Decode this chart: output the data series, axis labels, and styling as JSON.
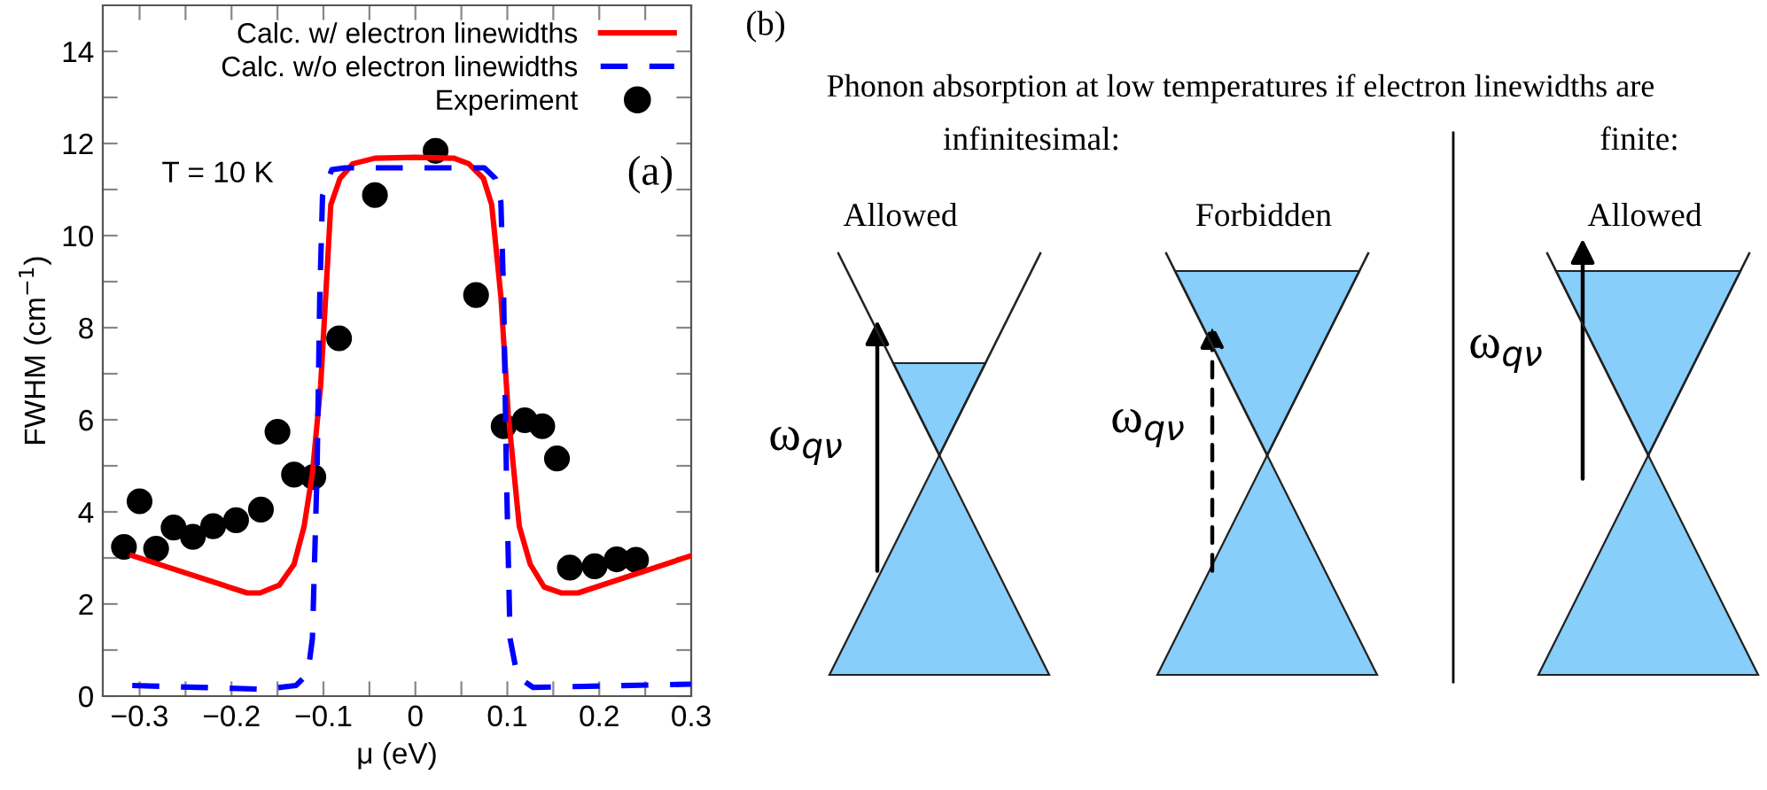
{
  "chart_data": [
    {
      "type": "line",
      "xlabel": "μ (eV)",
      "ylabel": "FWHM (cm$^{−1}$)",
      "xlim": [
        -0.34,
        0.3
      ],
      "ylim": [
        0,
        15
      ],
      "xticks": [
        {
          "value": -0.3,
          "label": "−0.3"
        },
        {
          "value": -0.25,
          "label": null
        },
        {
          "value": -0.2,
          "label": "−0.2"
        },
        {
          "value": -0.15,
          "label": null
        },
        {
          "value": -0.1,
          "label": "−0.1"
        },
        {
          "value": -0.05,
          "label": null
        },
        0,
        {
          "value": 0.05,
          "label": null
        },
        0.1,
        {
          "value": 0.15,
          "label": null
        },
        0.2,
        {
          "value": 0.25,
          "label": null
        },
        0.3
      ],
      "yticks": [
        0,
        {
          "value": 1,
          "label": null
        },
        2,
        {
          "value": 3,
          "label": null
        },
        4,
        {
          "value": 5,
          "label": null
        },
        6,
        {
          "value": 7,
          "label": null
        },
        8,
        {
          "value": 9,
          "label": null
        },
        10,
        {
          "value": 11,
          "label": null
        },
        12,
        {
          "value": 13,
          "label": null
        },
        14
      ],
      "grid": false,
      "legend": "top right",
      "annotations": [
        "T = 10 K",
        "(a)"
      ],
      "series": [
        {
          "name": "Calc. w/ electron linewidths",
          "type": "line",
          "color": "#ff0000",
          "line_style": "solid",
          "marker": "none",
          "x": [
            -0.308,
            -0.183,
            -0.169,
            -0.148,
            -0.132,
            -0.121,
            -0.112,
            -0.103,
            -0.092,
            -0.082,
            -0.068,
            -0.044,
            0,
            0.042,
            0.058,
            0.074,
            0.083,
            0.093,
            0.101,
            0.113,
            0.125,
            0.14,
            0.159,
            0.177,
            0.3
          ],
          "values": [
            3.05,
            2.24,
            2.24,
            2.41,
            2.86,
            3.69,
            4.84,
            6.76,
            10.67,
            11.24,
            11.56,
            11.68,
            11.7,
            11.68,
            11.56,
            11.24,
            10.67,
            8.68,
            6.12,
            3.69,
            2.86,
            2.37,
            2.24,
            2.24,
            3.05
          ]
        },
        {
          "name": "Calc. w/o electron linewidths",
          "type": "line",
          "color": "#0000ff",
          "line_style": "dashed",
          "marker": "none",
          "x": [
            -0.308,
            -0.164,
            -0.13,
            -0.117,
            -0.112,
            -0.107,
            -0.104,
            -0.101,
            -0.091,
            -0.077,
            0.075,
            0.087,
            0.093,
            0.096,
            0.099,
            0.103,
            0.111,
            0.128,
            0.3
          ],
          "values": [
            0.23,
            0.15,
            0.23,
            0.49,
            1.25,
            4.84,
            8.68,
            10.86,
            11.43,
            11.47,
            11.47,
            11.24,
            10.73,
            8.68,
            4.84,
            1.25,
            0.42,
            0.19,
            0.26
          ]
        },
        {
          "name": "Experiment",
          "type": "scatter",
          "color": "#000000",
          "marker": "circle",
          "x": [
            -0.317,
            -0.3,
            -0.282,
            -0.263,
            -0.242,
            -0.22,
            -0.195,
            -0.168,
            -0.15,
            -0.132,
            -0.111,
            -0.083,
            -0.044,
            0.022,
            0.066,
            0.096,
            0.119,
            0.138,
            0.154,
            0.168,
            0.195,
            0.219,
            0.24
          ],
          "values": [
            3.24,
            4.23,
            3.2,
            3.66,
            3.46,
            3.69,
            3.82,
            4.05,
            5.74,
            4.81,
            4.76,
            7.77,
            10.88,
            11.84,
            8.71,
            5.86,
            5.99,
            5.86,
            5.16,
            2.79,
            2.82,
            2.97,
            2.96
          ]
        }
      ]
    },
    {
      "type": "other",
      "title": "Phonon absorption at low temperatures if electron linewidths are",
      "annotations": [
        "(b)",
        "infinitesimal:",
        "finite:",
        "Allowed",
        "Forbidden",
        "Allowed",
        "ω$_{qν}$",
        "ω$_{qν}$",
        "ω$_{qν}$"
      ]
    }
  ]
}
